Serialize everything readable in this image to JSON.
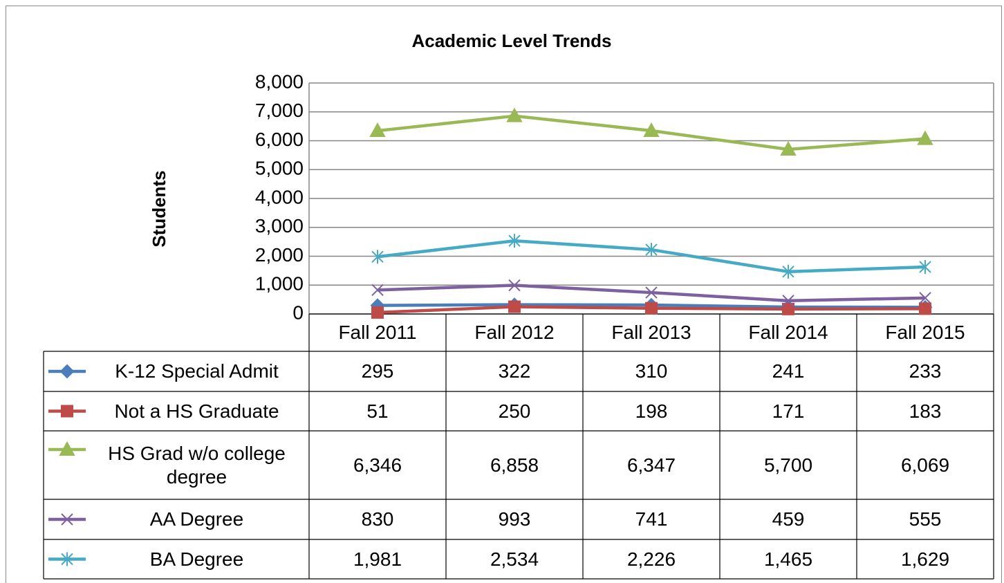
{
  "chart_data": {
    "type": "line",
    "title": "Academic Level Trends",
    "y_label": "Students",
    "categories": [
      "Fall 2011",
      "Fall 2012",
      "Fall 2013",
      "Fall 2014",
      "Fall 2015"
    ],
    "ylim": [
      0,
      8000
    ],
    "yticks": [
      0,
      {
        "value": 1000,
        "label": "1,000"
      },
      {
        "value": 2000,
        "label": "2,000"
      },
      {
        "value": 3000,
        "label": "3,000"
      },
      {
        "value": 4000,
        "label": "4,000"
      },
      {
        "value": 5000,
        "label": "5,000"
      },
      {
        "value": 6000,
        "label": "6,000"
      },
      {
        "value": 7000,
        "label": "7,000"
      },
      {
        "value": 8000,
        "label": "8,000"
      }
    ],
    "grid": true,
    "data_table": true,
    "series": [
      {
        "name": "K-12 Special Admit",
        "color": "#4a7ebb",
        "marker": "diamond",
        "values": [
          295,
          322,
          310,
          241,
          233
        ],
        "value_labels": [
          "295",
          "322",
          "310",
          "241",
          "233"
        ]
      },
      {
        "name": "Not a HS Graduate",
        "color": "#be4b48",
        "marker": "square",
        "values": [
          51,
          250,
          198,
          171,
          183
        ],
        "value_labels": [
          "51",
          "250",
          "198",
          "171",
          "183"
        ]
      },
      {
        "name": "HS Grad w/o college degree",
        "color": "#98b954",
        "marker": "triangle",
        "values": [
          6346,
          6858,
          6347,
          5700,
          6069
        ],
        "value_labels": [
          "6,346",
          "6,858",
          "6,347",
          "5,700",
          "6,069"
        ]
      },
      {
        "name": "AA Degree",
        "color": "#7d60a0",
        "marker": "x",
        "values": [
          830,
          993,
          741,
          459,
          555
        ],
        "value_labels": [
          "830",
          "993",
          "741",
          "459",
          "555"
        ]
      },
      {
        "name": "BA Degree",
        "color": "#46aac5",
        "marker": "star",
        "values": [
          1981,
          2534,
          2226,
          1465,
          1629
        ],
        "value_labels": [
          "1,981",
          "2,534",
          "2,226",
          "1,465",
          "1,629"
        ]
      }
    ]
  }
}
